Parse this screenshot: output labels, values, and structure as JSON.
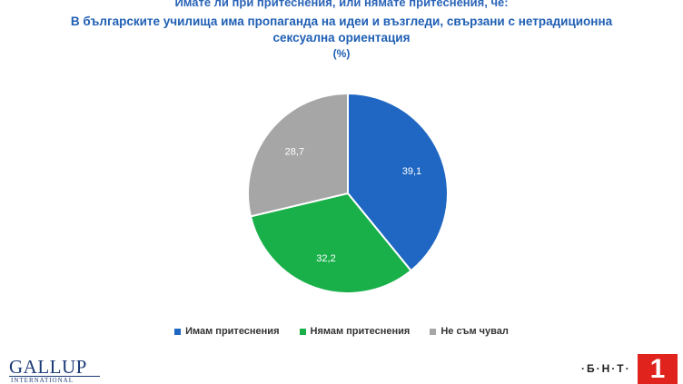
{
  "header": {
    "question": "Имате ли при притеснения, или нямате притеснения, че:",
    "title": "В българските училища има пропаганда на идеи и възгледи, свързани с нетрадиционна сексуална ориентация",
    "unit": "(%)"
  },
  "chart_data": {
    "type": "pie",
    "title": "В българските училища има пропаганда на идеи и възгледи, свързани с нетрадиционна сексуална ориентация",
    "unit": "%",
    "slices": [
      {
        "label": "Имам притеснения",
        "value": 39.1,
        "display": "39,1",
        "color": "#1f67c2"
      },
      {
        "label": "Нямам притеснения",
        "value": 32.2,
        "display": "32,2",
        "color": "#19b04a"
      },
      {
        "label": "Не съм чувал",
        "value": 28.7,
        "display": "28,7",
        "color": "#a6a6a6"
      }
    ],
    "legend_position": "bottom"
  },
  "logos": {
    "left_main": "GALLUP",
    "left_sub": "INTERNATIONAL",
    "right_text": "·Б·Н·Т·",
    "right_number": "1"
  }
}
